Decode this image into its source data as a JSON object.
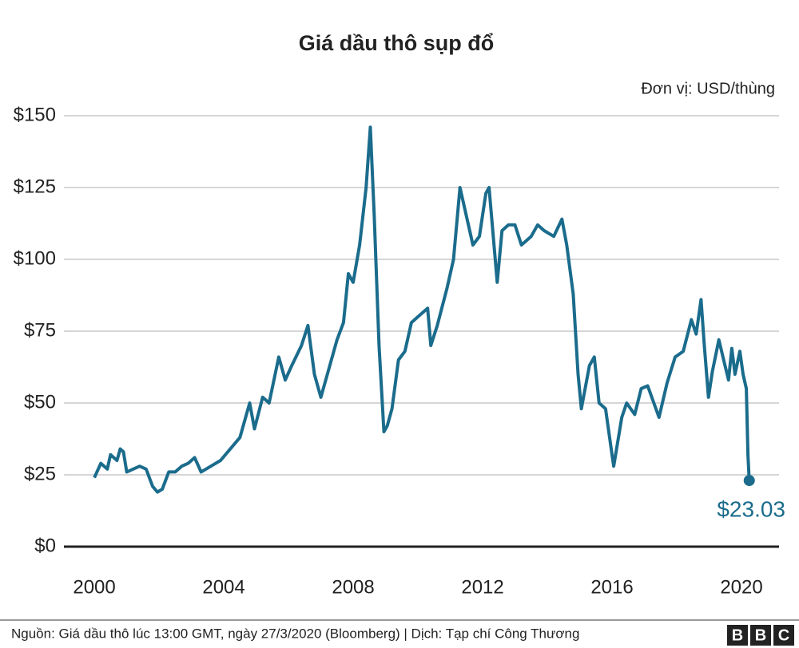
{
  "chart_data": {
    "type": "line",
    "title": "Giá dầu thô sụp đổ",
    "unit_note": "Đơn vị: USD/thùng",
    "source": "Nguồn: Giá dầu thô lúc 13:00 GMT, ngày 27/3/2020 (Bloomberg) | Dịch: Tạp chí Công Thương",
    "logo": [
      "B",
      "B",
      "C"
    ],
    "x": [
      2000.0,
      2000.2,
      2000.4,
      2000.5,
      2000.7,
      2000.8,
      2000.9,
      2001.0,
      2001.2,
      2001.4,
      2001.6,
      2001.8,
      2001.95,
      2002.1,
      2002.3,
      2002.5,
      2002.7,
      2002.9,
      2003.1,
      2003.3,
      2003.6,
      2003.9,
      2004.2,
      2004.5,
      2004.8,
      2004.95,
      2005.2,
      2005.4,
      2005.7,
      2005.9,
      2006.1,
      2006.4,
      2006.6,
      2006.8,
      2007.0,
      2007.2,
      2007.5,
      2007.7,
      2007.85,
      2008.0,
      2008.2,
      2008.4,
      2008.53,
      2008.65,
      2008.8,
      2008.95,
      2009.05,
      2009.2,
      2009.4,
      2009.6,
      2009.8,
      2010.0,
      2010.3,
      2010.4,
      2010.6,
      2010.9,
      2011.1,
      2011.3,
      2011.5,
      2011.7,
      2011.9,
      2012.1,
      2012.2,
      2012.45,
      2012.6,
      2012.8,
      2013.0,
      2013.2,
      2013.5,
      2013.7,
      2013.9,
      2014.2,
      2014.45,
      2014.6,
      2014.8,
      2014.95,
      2015.05,
      2015.3,
      2015.45,
      2015.6,
      2015.8,
      2016.0,
      2016.05,
      2016.3,
      2016.45,
      2016.7,
      2016.9,
      2017.1,
      2017.45,
      2017.7,
      2017.95,
      2018.2,
      2018.45,
      2018.6,
      2018.75,
      2018.85,
      2018.98,
      2019.1,
      2019.3,
      2019.45,
      2019.6,
      2019.7,
      2019.8,
      2019.95,
      2020.05,
      2020.15,
      2020.2,
      2020.24
    ],
    "series": [
      {
        "name": "Giá dầu thô",
        "color": "#1b6c8c",
        "values": [
          24,
          29,
          27,
          32,
          30,
          34,
          33,
          26,
          27,
          28,
          27,
          21,
          19,
          20,
          26,
          26,
          28,
          29,
          31,
          26,
          28,
          30,
          34,
          38,
          50,
          41,
          52,
          50,
          66,
          58,
          63,
          70,
          77,
          60,
          52,
          60,
          72,
          78,
          95,
          92,
          105,
          125,
          146,
          115,
          70,
          40,
          42,
          48,
          65,
          68,
          78,
          80,
          83,
          70,
          77,
          90,
          100,
          125,
          115,
          105,
          108,
          123,
          125,
          92,
          110,
          112,
          112,
          105,
          108,
          112,
          110,
          108,
          114,
          105,
          88,
          60,
          48,
          63,
          66,
          50,
          48,
          32,
          28,
          45,
          50,
          46,
          55,
          56,
          45,
          57,
          66,
          68,
          79,
          74,
          86,
          70,
          52,
          61,
          72,
          65,
          58,
          69,
          60,
          68,
          60,
          55,
          32,
          23.03
        ]
      }
    ],
    "last_value_label": "$23.03",
    "xlim": [
      1999.06,
      2021.16
    ],
    "xticks": [
      2000,
      2004,
      2008,
      2012,
      2016,
      2020
    ],
    "ylim": [
      0,
      150
    ],
    "yticks": [
      {
        "value": 0,
        "label": "$0"
      },
      {
        "value": 25,
        "label": "$25"
      },
      {
        "value": 50,
        "label": "$50"
      },
      {
        "value": 75,
        "label": "$75"
      },
      {
        "value": 100,
        "label": "$100"
      },
      {
        "value": 125,
        "label": "$125"
      },
      {
        "value": 150,
        "label": "$150"
      }
    ],
    "grid": true
  }
}
